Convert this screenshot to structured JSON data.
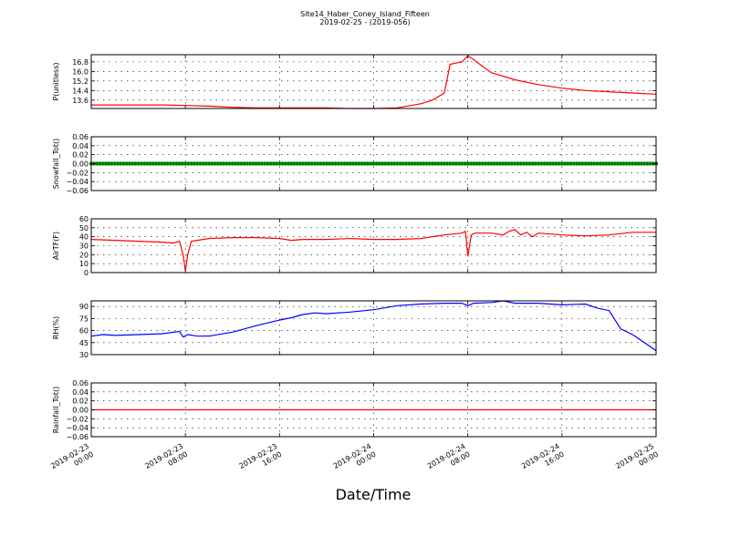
{
  "figure": {
    "title": "Site14_Haber_Coney_Island_Fifteen",
    "subtitle": "2019-02-25 - (2019-056)",
    "xlabel": "Date/Time"
  },
  "chart_data": [
    {
      "type": "line",
      "ylabel": "P(unitless)",
      "color": "#ff0000",
      "ylim": [
        12.9,
        17.4
      ],
      "yticks": [
        13.6,
        14.4,
        15.2,
        16.0,
        16.8
      ],
      "yticklabels": [
        "13.6",
        "14.4",
        "15.2",
        "16.0",
        "16.8"
      ],
      "xlim": [
        "2019-02-23 00:00",
        "2019-02-25 00:00"
      ],
      "x_hours": [
        0,
        2,
        4,
        6,
        8,
        10,
        12,
        14,
        16,
        18,
        20,
        22,
        24,
        26,
        28,
        29,
        30,
        30.5,
        31,
        31.5,
        32,
        32.5,
        33,
        34,
        36,
        38,
        40,
        42,
        44,
        46,
        48
      ],
      "values": [
        13.2,
        13.2,
        13.2,
        13.2,
        13.15,
        13.1,
        13.0,
        12.95,
        12.95,
        12.95,
        12.95,
        12.9,
        12.9,
        12.95,
        13.3,
        13.6,
        14.2,
        16.6,
        16.7,
        16.8,
        17.3,
        17.0,
        16.6,
        15.9,
        15.3,
        14.9,
        14.6,
        14.4,
        14.3,
        14.2,
        14.1
      ],
      "grid": true
    },
    {
      "type": "scatter",
      "ylabel": "Snowfall_Tot()",
      "color": "#008000",
      "ylim": [
        -0.06,
        0.06
      ],
      "yticks": [
        -0.06,
        -0.04,
        -0.02,
        0.0,
        0.02,
        0.04,
        0.06
      ],
      "yticklabels": [
        "−0.06",
        "−0.04",
        "−0.02",
        "0.00",
        "0.02",
        "0.04",
        "0.06"
      ],
      "xlim": [
        "2019-02-23 00:00",
        "2019-02-25 00:00"
      ],
      "x_hours": [
        0,
        48
      ],
      "values": [
        0.0,
        0.0
      ],
      "grid": true
    },
    {
      "type": "line",
      "ylabel": "AirTF(F)",
      "color": "#ff0000",
      "ylim": [
        0,
        60
      ],
      "yticks": [
        0,
        10,
        20,
        30,
        40,
        50,
        60
      ],
      "yticklabels": [
        "0",
        "10",
        "20",
        "30",
        "40",
        "50",
        "60"
      ],
      "xlim": [
        "2019-02-23 00:00",
        "2019-02-25 00:00"
      ],
      "x_hours": [
        0,
        2,
        4,
        6,
        7,
        7.5,
        7.8,
        8.0,
        8.2,
        8.5,
        10,
        12,
        14,
        16,
        17,
        18,
        20,
        22,
        24,
        26,
        28,
        30,
        31.5,
        31.8,
        32.0,
        32.3,
        32.6,
        34,
        35,
        35.5,
        36,
        36.5,
        37,
        37.5,
        38,
        40,
        42,
        44,
        46,
        48
      ],
      "values": [
        37,
        36,
        35,
        34,
        33,
        35,
        20,
        2,
        20,
        35,
        38,
        39,
        39,
        38,
        36,
        37,
        37,
        38,
        37,
        37,
        38,
        42,
        44,
        46,
        18,
        42,
        44,
        44,
        42,
        46,
        48,
        42,
        45,
        40,
        44,
        42,
        41,
        42,
        45,
        45
      ],
      "grid": true
    },
    {
      "type": "line",
      "ylabel": "RH(%)",
      "color": "#0000ff",
      "ylim": [
        30,
        97
      ],
      "yticks": [
        30,
        45,
        60,
        75,
        90
      ],
      "yticklabels": [
        "30",
        "45",
        "60",
        "75",
        "90"
      ],
      "xlim": [
        "2019-02-23 00:00",
        "2019-02-25 00:00"
      ],
      "x_hours": [
        0,
        1,
        2,
        4,
        6,
        7.5,
        7.8,
        8.2,
        9,
        10,
        12,
        14,
        16,
        17,
        18,
        19,
        20,
        22,
        24,
        26,
        28,
        30,
        31.5,
        32,
        32.5,
        34,
        35,
        36,
        38,
        40,
        42,
        43,
        44,
        45,
        46,
        47,
        48
      ],
      "values": [
        53,
        55,
        54,
        55,
        56,
        59,
        52,
        55,
        53,
        53,
        58,
        66,
        73,
        76,
        80,
        82,
        81,
        83,
        86,
        91,
        93,
        94,
        94,
        91,
        94,
        95,
        97,
        94,
        94,
        92,
        93,
        88,
        85,
        62,
        55,
        45,
        35
      ],
      "grid": true
    },
    {
      "type": "line",
      "ylabel": "Rainfall_Tot()",
      "color": "#ff0000",
      "ylim": [
        -0.06,
        0.06
      ],
      "yticks": [
        -0.06,
        -0.04,
        -0.02,
        0.0,
        0.02,
        0.04,
        0.06
      ],
      "yticklabels": [
        "−0.06",
        "−0.04",
        "−0.02",
        "0.00",
        "0.02",
        "0.04",
        "0.06"
      ],
      "xlim": [
        "2019-02-23 00:00",
        "2019-02-25 00:00"
      ],
      "x_hours": [
        0,
        48
      ],
      "values": [
        0.0,
        0.0
      ],
      "grid": true
    }
  ],
  "x_axis": {
    "tick_hours": [
      0,
      8,
      16,
      24,
      32,
      40,
      48
    ],
    "tick_labels": [
      [
        "2019-02-23",
        "00:00"
      ],
      [
        "2019-02-23",
        "08:00"
      ],
      [
        "2019-02-23",
        "16:00"
      ],
      [
        "2019-02-24",
        "00:00"
      ],
      [
        "2019-02-24",
        "08:00"
      ],
      [
        "2019-02-24",
        "16:00"
      ],
      [
        "2019-02-25",
        "00:00"
      ]
    ]
  }
}
